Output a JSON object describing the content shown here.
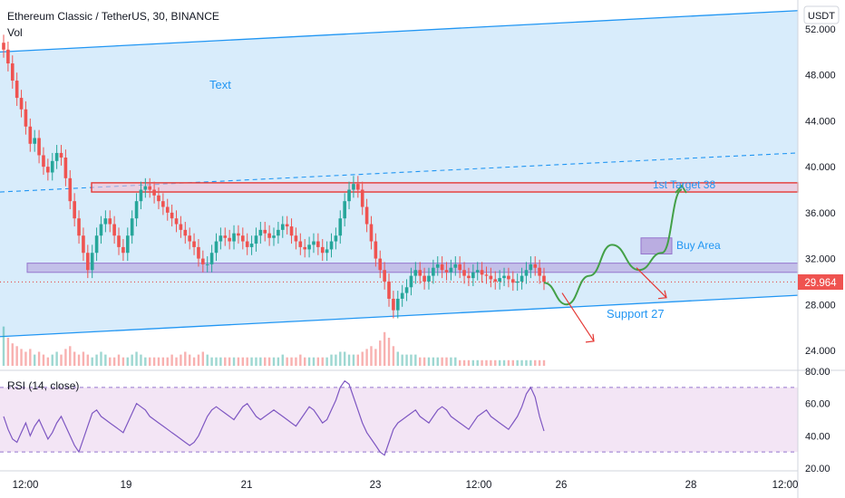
{
  "header": {
    "title": "Ethereum Classic / TetherUS, 30, BINANCE",
    "volume_label": "Vol"
  },
  "price_axis": {
    "currency": "USDT",
    "ticks": [
      "52.000",
      "48.000",
      "44.000",
      "40.000",
      "36.000",
      "32.000",
      "28.000",
      "24.000"
    ],
    "last_price": "29.964"
  },
  "rsi_panel": {
    "label": "RSI (14, close)",
    "ticks": [
      "80.00",
      "60.00",
      "40.00",
      "20.00"
    ]
  },
  "time_axis": {
    "ticks": [
      "12:00",
      "19",
      "21",
      "23",
      "12:00",
      "26",
      "28",
      "12:00"
    ]
  },
  "annotations": {
    "text_label": "Text",
    "target_label": "1st Target 38",
    "buy_label": "Buy Area",
    "support_label": "Support 27"
  },
  "colors": {
    "channel_fill": "#d6ebfb",
    "channel_line": "#2196f3",
    "zone_red": "#e53935",
    "zone_purple": "#b39ddb",
    "up_candle": "#26a69a",
    "down_candle": "#ef5350",
    "rsi_line": "#7e57c2",
    "rsi_band": "#f3e5f5",
    "projection_green": "#43a047",
    "projection_red": "#e53935",
    "price_badge": "#ef5350"
  },
  "chart_data": {
    "type": "candlestick",
    "symbol": "ETCUSDT",
    "interval": "30",
    "exchange": "BINANCE",
    "ylim": [
      22,
      54
    ],
    "close_series": [
      50.2,
      49.0,
      47.5,
      46.0,
      45.0,
      43.5,
      42.0,
      42.5,
      41.0,
      40.0,
      39.5,
      40.5,
      41.2,
      40.8,
      39.0,
      37.0,
      35.5,
      34.0,
      32.5,
      31.0,
      32.5,
      34.0,
      35.0,
      35.5,
      35.0,
      34.0,
      33.0,
      32.5,
      34.0,
      35.5,
      37.0,
      38.0,
      38.3,
      38.0,
      37.5,
      37.0,
      36.5,
      36.0,
      35.5,
      35.0,
      34.5,
      34.0,
      33.5,
      33.0,
      32.0,
      31.5,
      31.5,
      32.5,
      33.5,
      34.0,
      33.8,
      33.5,
      34.2,
      34.0,
      33.5,
      33.0,
      33.3,
      34.0,
      34.5,
      34.2,
      33.8,
      34.0,
      34.5,
      35.0,
      34.8,
      34.0,
      33.5,
      33.0,
      32.8,
      33.2,
      33.5,
      33.0,
      32.5,
      32.8,
      33.5,
      34.0,
      35.5,
      37.0,
      38.0,
      38.5,
      38.0,
      36.5,
      35.0,
      33.5,
      32.0,
      31.0,
      30.0,
      28.5,
      27.5,
      28.5,
      29.0,
      29.5,
      30.5,
      31.0,
      30.5,
      30.0,
      30.5,
      31.2,
      31.5,
      31.0,
      30.8,
      31.2,
      31.5,
      31.0,
      30.5,
      30.3,
      30.8,
      31.0,
      30.6,
      30.5,
      30.2,
      30.0,
      30.3,
      30.5,
      30.2,
      29.9,
      30.0,
      30.5,
      31.0,
      31.5,
      31.2,
      30.5,
      29.964
    ],
    "volume_series": [
      14,
      10,
      8,
      7,
      6,
      5,
      6,
      4,
      5,
      4,
      3,
      4,
      5,
      4,
      6,
      7,
      5,
      4,
      5,
      4,
      3,
      4,
      5,
      4,
      3,
      3,
      4,
      3,
      3,
      4,
      5,
      4,
      3,
      3,
      3,
      3,
      3,
      3,
      4,
      3,
      4,
      5,
      4,
      3,
      4,
      5,
      4,
      3,
      3,
      3,
      3,
      3,
      3,
      3,
      3,
      3,
      3,
      3,
      3,
      3,
      3,
      3,
      3,
      4,
      3,
      3,
      3,
      4,
      3,
      3,
      3,
      3,
      3,
      3,
      4,
      4,
      5,
      5,
      4,
      4,
      4,
      5,
      6,
      7,
      6,
      9,
      12,
      10,
      7,
      5,
      4,
      4,
      4,
      4,
      3,
      3,
      3,
      3,
      3,
      3,
      3,
      3,
      3,
      2,
      2,
      2,
      2,
      2,
      2,
      2,
      2,
      2,
      2,
      2,
      2,
      2,
      2,
      2,
      2,
      2,
      2,
      2,
      2
    ],
    "rsi_series": [
      52,
      44,
      38,
      36,
      42,
      48,
      40,
      46,
      50,
      44,
      38,
      42,
      48,
      52,
      46,
      40,
      34,
      30,
      38,
      46,
      54,
      56,
      52,
      50,
      48,
      46,
      44,
      42,
      48,
      54,
      60,
      58,
      56,
      52,
      50,
      48,
      46,
      44,
      42,
      40,
      38,
      36,
      34,
      36,
      40,
      46,
      52,
      56,
      58,
      56,
      54,
      52,
      50,
      54,
      58,
      60,
      56,
      52,
      50,
      52,
      54,
      56,
      54,
      52,
      50,
      48,
      46,
      50,
      54,
      58,
      56,
      52,
      48,
      50,
      56,
      62,
      70,
      74,
      72,
      64,
      56,
      48,
      42,
      38,
      34,
      30,
      28,
      36,
      44,
      48,
      50,
      52,
      54,
      56,
      52,
      50,
      48,
      52,
      56,
      58,
      56,
      52,
      50,
      48,
      46,
      44,
      48,
      52,
      54,
      56,
      52,
      50,
      48,
      46,
      44,
      48,
      52,
      58,
      66,
      70,
      64,
      52,
      43
    ],
    "price_ticks": [
      52,
      48,
      44,
      40,
      36,
      32,
      28,
      24
    ],
    "rsi_ticks": [
      80,
      60,
      40,
      20
    ],
    "rsi_band": [
      30,
      70
    ],
    "x_ticks": [
      "12:00",
      "19",
      "21",
      "23",
      "12:00",
      "26",
      "28",
      "12:00"
    ],
    "last_price": 29.964,
    "channel": {
      "upper_start": 50.0,
      "upper_end": 53.6,
      "lower_start": 25.2,
      "lower_end": 28.8,
      "mid_start": 37.8,
      "mid_end": 41.2
    },
    "zones": [
      {
        "name": "1st Target 38",
        "low": 37.8,
        "high": 38.6
      },
      {
        "name": "Support zone",
        "low": 30.8,
        "high": 31.6
      },
      {
        "name": "Buy Area",
        "low": 32.4,
        "high": 33.8
      }
    ],
    "projection_green": [
      29.9,
      28.0,
      30.5,
      33.2,
      31.0,
      32.5,
      38.0
    ],
    "projection_red_1": [
      29.0,
      24.8
    ],
    "projection_red_2": [
      31.2,
      28.6
    ]
  }
}
